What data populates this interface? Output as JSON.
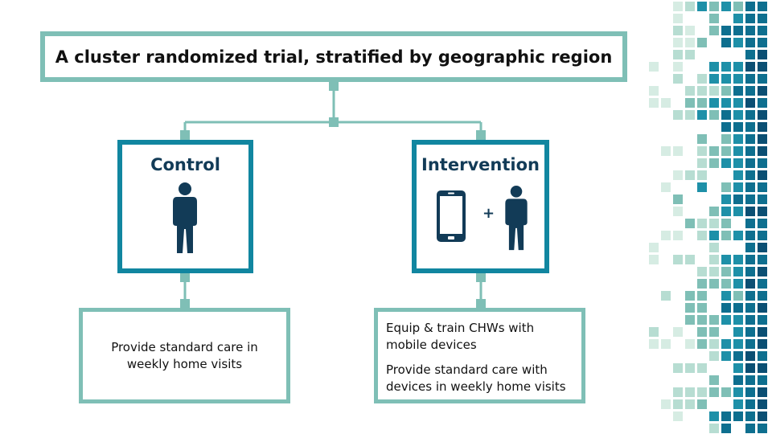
{
  "title": "A cluster randomized trial, stratified by geographic region",
  "control": {
    "label": "Control",
    "icon": "person-icon",
    "outcome": "Provide standard care in weekly home visits"
  },
  "intervention": {
    "label": "Intervention",
    "icons": [
      "smartphone-icon",
      "plus-icon",
      "person-icon"
    ],
    "plus_symbol": "+",
    "outcomes": [
      "Equip & train CHWs with mobile devices",
      "Provide standard care with devices  in weekly home visits"
    ]
  },
  "colors": {
    "light_teal": "#7fbfb6",
    "dark_teal": "#1186a0",
    "navy": "#123b57"
  }
}
